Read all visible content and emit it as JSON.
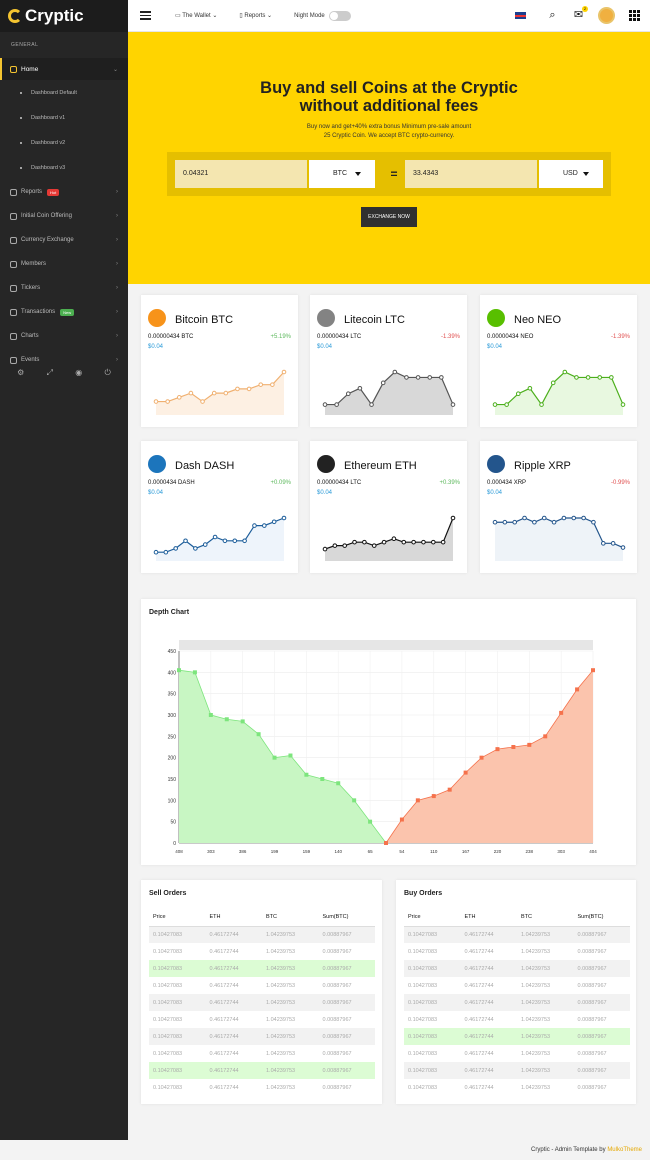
{
  "app": {
    "logo": "Cryptic"
  },
  "sidebar": {
    "section": "GENERAL",
    "home": "Home",
    "subitems": [
      "Dashboard Default",
      "Dashboard v1",
      "Dashboard v2",
      "Dashboard v3"
    ],
    "items": [
      {
        "label": "Reports",
        "badge": "Hot",
        "badge_color": "#e53935"
      },
      {
        "label": "Initial Coin Offering"
      },
      {
        "label": "Currency Exchange"
      },
      {
        "label": "Members"
      },
      {
        "label": "Tickers"
      },
      {
        "label": "Transactions",
        "badge": "New",
        "badge_color": "#4caf50"
      },
      {
        "label": "Charts"
      },
      {
        "label": "Events"
      }
    ],
    "footer_icons": [
      "gear-icon",
      "expand-icon",
      "eye-icon",
      "power-icon"
    ]
  },
  "topbar": {
    "wallet": "The Wallet",
    "reports": "Reports",
    "night_mode": "Night Mode",
    "notification_count": "2"
  },
  "hero": {
    "title_line1": "Buy and sell Coins at the Cryptic",
    "title_line2": "without additional fees",
    "sub_line1": "Buy now and get+40% extra bonus Minimum pre-sale amount",
    "sub_line2": "25 Cryptic Coin. We accept BTC crypto-currency.",
    "amount": "0.04321",
    "from_currency": "BTC",
    "equals": "=",
    "converted": "33.4343",
    "to_currency": "USD",
    "button": "EXCHANGE NOW"
  },
  "coins": [
    {
      "name": "Bitcoin BTC",
      "amount": "0.00000434 BTC",
      "usd": "$0.04",
      "change": "+5.19%",
      "up": true,
      "color": "#f7931a",
      "line": "#f0b070",
      "fill": "#fdf0e3",
      "series": [
        2,
        2,
        3,
        4,
        2,
        4,
        4,
        5,
        5,
        6,
        6,
        9
      ]
    },
    {
      "name": "Litecoin LTC",
      "amount": "0.00000434 LTC",
      "usd": "$0.04",
      "change": "-1.39%",
      "up": false,
      "color": "#838383",
      "line": "#555",
      "fill": "#d8d8d8",
      "series": [
        1,
        1,
        3,
        4,
        1,
        5,
        7,
        6,
        6,
        6,
        6,
        1
      ]
    },
    {
      "name": "Neo NEO",
      "amount": "0.00000434 NEO",
      "usd": "$0.04",
      "change": "-1.39%",
      "up": false,
      "color": "#58bf00",
      "line": "#4caf1c",
      "fill": "#e8f8e0",
      "series": [
        1,
        1,
        3,
        4,
        1,
        5,
        7,
        6,
        6,
        6,
        6,
        1
      ]
    },
    {
      "name": "Dash DASH",
      "amount": "0.0000434 DASH",
      "usd": "$0.04",
      "change": "+0.09%",
      "up": true,
      "color": "#1c75bc",
      "line": "#1c5d9a",
      "fill": "#eef4fb",
      "series": [
        1,
        1,
        2,
        4,
        2,
        3,
        5,
        4,
        4,
        4,
        8,
        8,
        9,
        10
      ]
    },
    {
      "name": "Ethereum ETH",
      "amount": "0.00000434 LTC",
      "usd": "$0.04",
      "change": "+0.39%",
      "up": true,
      "color": "#222222",
      "line": "#111",
      "fill": "#d8d8d8",
      "series": [
        2,
        3,
        3,
        4,
        4,
        3,
        4,
        5,
        4,
        4,
        4,
        4,
        4,
        11
      ]
    },
    {
      "name": "Ripple XRP",
      "amount": "0.000434 XRP",
      "usd": "$0.04",
      "change": "-0.99%",
      "up": false,
      "color": "#23558c",
      "line": "#23558c",
      "fill": "#eef3f8",
      "series": [
        8,
        8,
        8,
        9,
        8,
        9,
        8,
        9,
        9,
        9,
        8,
        3,
        3,
        2
      ]
    }
  ],
  "depth": {
    "title": "Depth Chart"
  },
  "chart_data": {
    "type": "area",
    "title": "Depth Chart",
    "ylim": [
      0,
      450
    ],
    "yticks": [
      0,
      50,
      100,
      150,
      200,
      250,
      300,
      350,
      400,
      450
    ],
    "xtick_labels": [
      "408",
      "303",
      "386",
      "199",
      "159",
      "140",
      "65",
      "54",
      "110",
      "167",
      "220",
      "238",
      "303",
      "404"
    ],
    "series": [
      {
        "color": "#7de57d",
        "fill": "#c8f6c3",
        "values": [
          405,
          400,
          300,
          290,
          285,
          255,
          200,
          205,
          160,
          150,
          140,
          100,
          50,
          0
        ]
      },
      {
        "color": "#f5724c",
        "fill": "#fbc4ad",
        "values": [
          0,
          55,
          100,
          110,
          125,
          165,
          200,
          220,
          225,
          230,
          250,
          305,
          360,
          405
        ]
      }
    ]
  },
  "sell": {
    "title": "Sell Orders",
    "headers": [
      "Price",
      "ETH",
      "BTC",
      "Sum(BTC)"
    ],
    "rows": [
      {
        "c": [
          "0.10427083",
          "0.46172744",
          "1.04239753",
          "0.00887967"
        ],
        "s": "alt"
      },
      {
        "c": [
          "0.10427083",
          "0.46172744",
          "1.04239753",
          "0.00887967"
        ],
        "s": ""
      },
      {
        "c": [
          "0.10427083",
          "0.46172744",
          "1.04239753",
          "0.00887967"
        ],
        "s": "hl"
      },
      {
        "c": [
          "0.10427083",
          "0.46172744",
          "1.04239753",
          "0.00887967"
        ],
        "s": ""
      },
      {
        "c": [
          "0.10427083",
          "0.46172744",
          "1.04239753",
          "0.00887967"
        ],
        "s": "alt"
      },
      {
        "c": [
          "0.10427083",
          "0.46172744",
          "1.04239753",
          "0.00887967"
        ],
        "s": ""
      },
      {
        "c": [
          "0.10427083",
          "0.46172744",
          "1.04239753",
          "0.00887967"
        ],
        "s": "alt"
      },
      {
        "c": [
          "0.10427083",
          "0.46172744",
          "1.04239753",
          "0.00887967"
        ],
        "s": ""
      },
      {
        "c": [
          "0.10427083",
          "0.46172744",
          "1.04239753",
          "0.00887967"
        ],
        "s": "hl"
      },
      {
        "c": [
          "0.10427083",
          "0.46172744",
          "1.04239753",
          "0.00887967"
        ],
        "s": ""
      }
    ]
  },
  "buy": {
    "title": "Buy Orders",
    "headers": [
      "Price",
      "ETH",
      "BTC",
      "Sum(BTC)"
    ],
    "rows": [
      {
        "c": [
          "0.10427083",
          "0.46172744",
          "1.04239753",
          "0.00887967"
        ],
        "s": "alt"
      },
      {
        "c": [
          "0.10427083",
          "0.46172744",
          "1.04239753",
          "0.00887967"
        ],
        "s": ""
      },
      {
        "c": [
          "0.10427083",
          "0.46172744",
          "1.04239753",
          "0.00887967"
        ],
        "s": "alt"
      },
      {
        "c": [
          "0.10427083",
          "0.46172744",
          "1.04239753",
          "0.00887967"
        ],
        "s": ""
      },
      {
        "c": [
          "0.10427083",
          "0.46172744",
          "1.04239753",
          "0.00887967"
        ],
        "s": "alt"
      },
      {
        "c": [
          "0.10427083",
          "0.46172744",
          "1.04239753",
          "0.00887967"
        ],
        "s": ""
      },
      {
        "c": [
          "0.10427083",
          "0.46172744",
          "1.04239753",
          "0.00887967"
        ],
        "s": "hl"
      },
      {
        "c": [
          "0.10427083",
          "0.46172744",
          "1.04239753",
          "0.00887967"
        ],
        "s": ""
      },
      {
        "c": [
          "0.10427083",
          "0.46172744",
          "1.04239753",
          "0.00887967"
        ],
        "s": "alt"
      },
      {
        "c": [
          "0.10427083",
          "0.46172744",
          "1.04239753",
          "0.00887967"
        ],
        "s": ""
      }
    ]
  },
  "footer": {
    "text": "Cryptic - Admin Template by",
    "brand": "MulkoTheme"
  }
}
